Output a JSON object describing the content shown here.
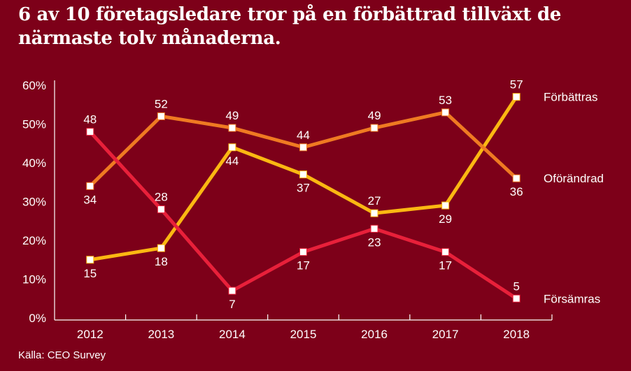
{
  "title": "6 av 10 företagsledare tror på en förbättrad tillväxt de närmaste tolv månaderna.",
  "source": "Källa: CEO Survey",
  "colors": {
    "background": "#7d0019",
    "forbattras": "#fbb812",
    "oforandrad": "#ef7a22",
    "forsamras": "#e8203a",
    "marker": "#ffffff"
  },
  "chart_data": {
    "type": "line",
    "title": "6 av 10 företagsledare tror på en förbättrad tillväxt de närmaste tolv månaderna.",
    "xlabel": "",
    "ylabel": "",
    "categories": [
      "2012",
      "2013",
      "2014",
      "2015",
      "2016",
      "2017",
      "2018"
    ],
    "ylim": [
      0,
      60
    ],
    "yticks": [
      "0%",
      "10%",
      "20%",
      "30%",
      "40%",
      "50%",
      "60%"
    ],
    "grid": false,
    "legend": "right (direct labels at line ends)",
    "series": [
      {
        "name": "Förbättras",
        "color": "#fbb812",
        "values": [
          15,
          18,
          44,
          37,
          27,
          29,
          57
        ],
        "label_pos": [
          "below",
          "below",
          "below",
          "below",
          "above",
          "below",
          "above"
        ]
      },
      {
        "name": "Oförändrad",
        "color": "#ef7a22",
        "values": [
          34,
          52,
          49,
          44,
          49,
          53,
          36
        ],
        "label_pos": [
          "below",
          "above",
          "above",
          "above",
          "above",
          "above",
          "below"
        ]
      },
      {
        "name": "Försämras",
        "color": "#e8203a",
        "values": [
          48,
          28,
          7,
          17,
          23,
          17,
          5
        ],
        "label_pos": [
          "above",
          "above",
          "below",
          "below",
          "below",
          "below",
          "above"
        ]
      }
    ]
  }
}
